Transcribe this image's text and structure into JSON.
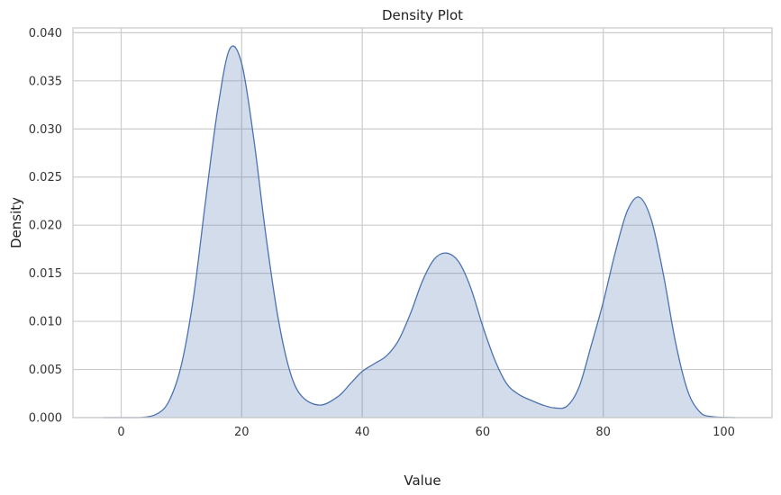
{
  "chart_data": {
    "type": "area",
    "title": "Density Plot",
    "xlabel": "Value",
    "ylabel": "Density",
    "xlim": [
      -8,
      108
    ],
    "ylim": [
      0,
      0.0405
    ],
    "xticks": [
      0,
      20,
      40,
      60,
      80,
      100
    ],
    "xtick_labels": [
      "0",
      "20",
      "40",
      "60",
      "80",
      "100"
    ],
    "yticks": [
      0,
      0.005,
      0.01,
      0.015,
      0.02,
      0.025,
      0.03,
      0.035,
      0.04
    ],
    "ytick_labels": [
      "0.000",
      "0.005",
      "0.010",
      "0.015",
      "0.020",
      "0.025",
      "0.030",
      "0.035",
      "0.040"
    ],
    "grid": true,
    "colors": {
      "line": "#4c72b0",
      "fill": "#4c72b0",
      "grid": "#cccccc",
      "spine": "#cccccc"
    },
    "series": [
      {
        "x": [
          -3,
          3,
          6,
          8,
          10,
          12,
          14,
          16,
          18,
          20,
          22,
          24,
          26,
          28,
          30,
          33,
          36,
          38,
          40,
          42,
          44,
          46,
          48,
          50,
          52,
          54,
          56,
          58,
          60,
          62,
          64,
          66,
          68,
          70,
          72,
          74,
          76,
          78,
          80,
          82,
          84,
          86,
          88,
          90,
          92,
          94,
          96,
          98,
          102
        ],
        "y": [
          0,
          0,
          0.0004,
          0.0018,
          0.0055,
          0.0125,
          0.0225,
          0.032,
          0.0383,
          0.0368,
          0.029,
          0.019,
          0.0105,
          0.0048,
          0.0022,
          0.0013,
          0.0022,
          0.0035,
          0.0048,
          0.0056,
          0.0064,
          0.008,
          0.0108,
          0.0142,
          0.0165,
          0.0171,
          0.0162,
          0.0135,
          0.0095,
          0.006,
          0.0035,
          0.0024,
          0.0018,
          0.0013,
          0.001,
          0.0012,
          0.0032,
          0.0075,
          0.012,
          0.0172,
          0.0215,
          0.0229,
          0.0205,
          0.0148,
          0.0078,
          0.0028,
          0.0006,
          0.0001,
          0
        ]
      }
    ]
  }
}
